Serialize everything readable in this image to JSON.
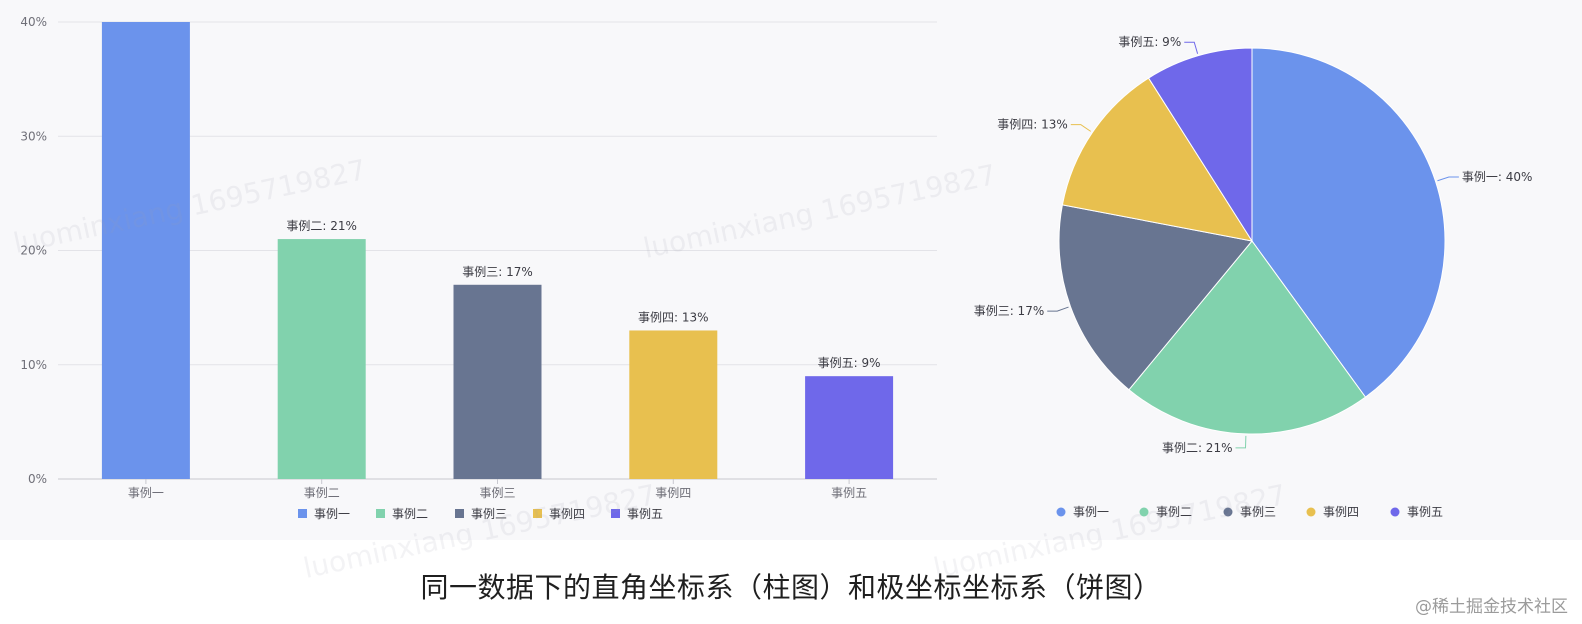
{
  "chart_data": [
    {
      "type": "bar",
      "categories": [
        "事例一",
        "事例二",
        "事例三",
        "事例四",
        "事例五"
      ],
      "values": [
        40,
        21,
        17,
        13,
        9
      ],
      "data_labels": [
        "",
        "事例二: 21%",
        "事例三: 17%",
        "事例四: 13%",
        "事例五: 9%"
      ],
      "yticks": [
        "0%",
        "10%",
        "20%",
        "30%",
        "40%"
      ],
      "ylim": [
        0,
        40
      ],
      "grid": true,
      "legend": {
        "position": "bottom",
        "entries": [
          "事例一",
          "事例二",
          "事例三",
          "事例四",
          "事例五"
        ]
      },
      "colors": [
        "#6b93ec",
        "#81d2ad",
        "#687591",
        "#e8c04f",
        "#6f68ea"
      ]
    },
    {
      "type": "pie",
      "categories": [
        "事例一",
        "事例二",
        "事例三",
        "事例四",
        "事例五"
      ],
      "values": [
        40,
        21,
        17,
        13,
        9
      ],
      "slice_labels": [
        "事例一: 40%",
        "事例二: 21%",
        "事例三: 17%",
        "事例四: 13%",
        "事例五: 9%"
      ],
      "legend": {
        "position": "bottom",
        "entries": [
          "事例一",
          "事例二",
          "事例三",
          "事例四",
          "事例五"
        ]
      },
      "colors": [
        "#6b93ec",
        "#81d2ad",
        "#687591",
        "#e8c04f",
        "#6f68ea"
      ]
    }
  ],
  "caption": "同一数据下的直角坐标系（柱图）和极坐标坐标系（饼图）",
  "credit": "@稀土掘金技术社区",
  "watermark": "luominxiang 1695719827"
}
